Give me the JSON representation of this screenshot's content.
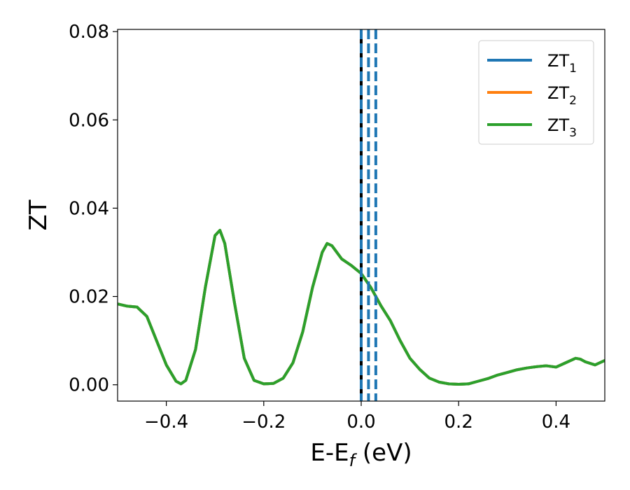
{
  "chart_data": {
    "type": "line",
    "xlabel": {
      "main": "E-E",
      "sub": "f",
      "suffix": " (eV)"
    },
    "ylabel": "ZT",
    "xlim": [
      -0.5,
      0.5
    ],
    "ylim": [
      -0.0037,
      0.0805
    ],
    "x_ticks": [
      -0.4,
      -0.2,
      0.0,
      0.2,
      0.4
    ],
    "x_tick_labels": [
      "−0.4",
      "−0.2",
      "0.0",
      "0.2",
      "0.4"
    ],
    "y_ticks": [
      0.0,
      0.02,
      0.04,
      0.06,
      0.08
    ],
    "y_tick_labels": [
      "0.00",
      "0.02",
      "0.04",
      "0.06",
      "0.08"
    ],
    "grid": false,
    "legend_position": "top-right",
    "legend": [
      {
        "base": "ZT",
        "sub": "1",
        "color": "#1f77b4"
      },
      {
        "base": "ZT",
        "sub": "2",
        "color": "#ff7f0e"
      },
      {
        "base": "ZT",
        "sub": "3",
        "color": "#2ca02c"
      }
    ],
    "x": [
      -0.5,
      -0.48,
      -0.46,
      -0.44,
      -0.42,
      -0.4,
      -0.38,
      -0.37,
      -0.36,
      -0.34,
      -0.32,
      -0.3,
      -0.29,
      -0.28,
      -0.26,
      -0.24,
      -0.22,
      -0.2,
      -0.18,
      -0.16,
      -0.14,
      -0.12,
      -0.1,
      -0.08,
      -0.07,
      -0.06,
      -0.04,
      -0.02,
      0.0,
      0.02,
      0.04,
      0.06,
      0.08,
      0.1,
      0.12,
      0.14,
      0.16,
      0.18,
      0.2,
      0.22,
      0.24,
      0.26,
      0.28,
      0.3,
      0.32,
      0.34,
      0.36,
      0.38,
      0.4,
      0.42,
      0.44,
      0.45,
      0.46,
      0.48,
      0.5
    ],
    "series": [
      {
        "name": "ZT₁",
        "color": "#1f77b4",
        "values": [
          0.0183,
          0.0178,
          0.0176,
          0.0155,
          0.01,
          0.0045,
          0.0008,
          0.0002,
          0.001,
          0.008,
          0.022,
          0.0338,
          0.035,
          0.032,
          0.0185,
          0.006,
          0.001,
          0.0002,
          0.0003,
          0.0015,
          0.005,
          0.012,
          0.022,
          0.03,
          0.032,
          0.0315,
          0.0285,
          0.027,
          0.0252,
          0.022,
          0.018,
          0.0145,
          0.01,
          0.006,
          0.0035,
          0.0015,
          0.0006,
          0.0002,
          0.0001,
          0.0002,
          0.0008,
          0.0014,
          0.0022,
          0.0028,
          0.0034,
          0.0038,
          0.0041,
          0.0043,
          0.004,
          0.005,
          0.006,
          0.0058,
          0.0052,
          0.0045,
          0.0055
        ]
      },
      {
        "name": "ZT₂",
        "color": "#ff7f0e",
        "values": [
          0.0183,
          0.0178,
          0.0176,
          0.0155,
          0.01,
          0.0045,
          0.0008,
          0.0002,
          0.001,
          0.008,
          0.022,
          0.0338,
          0.035,
          0.032,
          0.0185,
          0.006,
          0.001,
          0.0002,
          0.0003,
          0.0015,
          0.005,
          0.012,
          0.022,
          0.03,
          0.032,
          0.0315,
          0.0285,
          0.027,
          0.0252,
          0.022,
          0.018,
          0.0145,
          0.01,
          0.006,
          0.0035,
          0.0015,
          0.0006,
          0.0002,
          0.0001,
          0.0002,
          0.0008,
          0.0014,
          0.0022,
          0.0028,
          0.0034,
          0.0038,
          0.0041,
          0.0043,
          0.004,
          0.005,
          0.006,
          0.0058,
          0.0052,
          0.0045,
          0.0055
        ]
      },
      {
        "name": "ZT₃",
        "color": "#2ca02c",
        "values": [
          0.0183,
          0.0178,
          0.0176,
          0.0155,
          0.01,
          0.0045,
          0.0008,
          0.0002,
          0.001,
          0.008,
          0.022,
          0.0338,
          0.035,
          0.032,
          0.0185,
          0.006,
          0.001,
          0.0002,
          0.0003,
          0.0015,
          0.005,
          0.012,
          0.022,
          0.03,
          0.032,
          0.0315,
          0.0285,
          0.027,
          0.0252,
          0.022,
          0.018,
          0.0145,
          0.01,
          0.006,
          0.0035,
          0.0015,
          0.0006,
          0.0002,
          0.0001,
          0.0002,
          0.0008,
          0.0014,
          0.0022,
          0.0028,
          0.0034,
          0.0038,
          0.0041,
          0.0043,
          0.004,
          0.005,
          0.006,
          0.0058,
          0.0052,
          0.0045,
          0.0055
        ]
      }
    ],
    "vlines": [
      {
        "x": 0.0,
        "color": "#000000",
        "style": "solid"
      },
      {
        "x": 0.0,
        "color": "#1f77b4",
        "style": "dashed"
      },
      {
        "x": 0.015,
        "color": "#1f77b4",
        "style": "dashed"
      },
      {
        "x": 0.03,
        "color": "#1f77b4",
        "style": "dashed"
      }
    ]
  }
}
